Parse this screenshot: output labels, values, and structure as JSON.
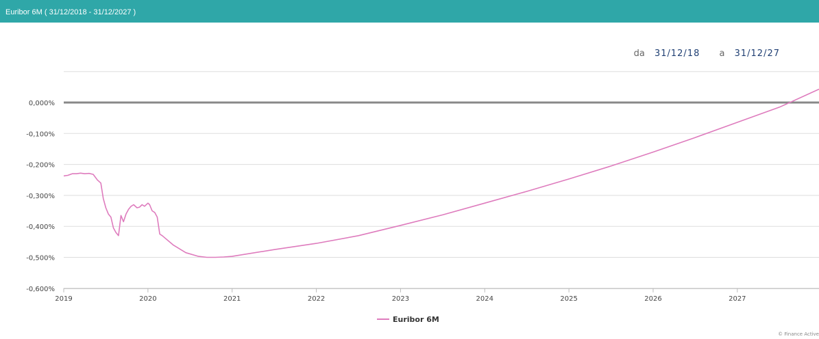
{
  "header": {
    "title": "Euribor 6M ( 31/12/2018 - 31/12/2027 )"
  },
  "range": {
    "from_label": "da",
    "from_value": "31/12/18",
    "to_label": "a",
    "to_value": "31/12/27"
  },
  "credit": "© Finance Active",
  "chart_data": {
    "type": "line",
    "title": "Euribor 6M ( 31/12/2018 - 31/12/2027 )",
    "xlabel": "",
    "ylabel": "",
    "xlim": [
      2019,
      2027.97
    ],
    "ylim": [
      -0.6,
      0.1
    ],
    "y_ticks": [
      0.0,
      -0.1,
      -0.2,
      -0.3,
      -0.4,
      -0.5,
      -0.6
    ],
    "y_tick_labels": [
      "0,000%",
      "-0,100%",
      "-0,200%",
      "-0,300%",
      "-0,400%",
      "-0,500%",
      "-0,600%"
    ],
    "x_ticks": [
      2019,
      2020,
      2021,
      2022,
      2023,
      2024,
      2025,
      2026,
      2027
    ],
    "x_tick_labels": [
      "2019",
      "2020",
      "2021",
      "2022",
      "2023",
      "2024",
      "2025",
      "2026",
      "2027"
    ],
    "zero_line": 0.0,
    "grid": "horizontal",
    "legend": "bottom-center",
    "colors": {
      "series": "#de7bbd",
      "zero_line": "#888888",
      "grid": "#dddddd",
      "header": "#2fa7a8"
    },
    "series": [
      {
        "name": "Euribor 6M",
        "x": [
          2019.0,
          2019.05,
          2019.1,
          2019.15,
          2019.2,
          2019.25,
          2019.3,
          2019.35,
          2019.4,
          2019.44,
          2019.47,
          2019.5,
          2019.53,
          2019.56,
          2019.59,
          2019.62,
          2019.65,
          2019.68,
          2019.71,
          2019.74,
          2019.77,
          2019.8,
          2019.83,
          2019.87,
          2019.9,
          2019.93,
          2019.96,
          2020.0,
          2020.02,
          2020.05,
          2020.08,
          2020.11,
          2020.14,
          2020.17,
          2020.3,
          2020.45,
          2020.6,
          2020.7,
          2020.8,
          2020.9,
          2021.0,
          2021.5,
          2022.0,
          2022.5,
          2023.0,
          2023.5,
          2024.0,
          2024.5,
          2025.0,
          2025.5,
          2026.0,
          2026.5,
          2027.0,
          2027.5,
          2027.97
        ],
        "values": [
          -0.237,
          -0.235,
          -0.23,
          -0.23,
          -0.228,
          -0.23,
          -0.229,
          -0.232,
          -0.25,
          -0.26,
          -0.31,
          -0.34,
          -0.36,
          -0.37,
          -0.405,
          -0.42,
          -0.43,
          -0.365,
          -0.385,
          -0.36,
          -0.345,
          -0.335,
          -0.33,
          -0.34,
          -0.338,
          -0.33,
          -0.335,
          -0.325,
          -0.33,
          -0.35,
          -0.355,
          -0.37,
          -0.425,
          -0.43,
          -0.46,
          -0.485,
          -0.497,
          -0.5,
          -0.5,
          -0.499,
          -0.497,
          -0.475,
          -0.455,
          -0.43,
          -0.397,
          -0.363,
          -0.325,
          -0.287,
          -0.247,
          -0.205,
          -0.16,
          -0.113,
          -0.064,
          -0.015,
          0.043
        ]
      }
    ]
  }
}
